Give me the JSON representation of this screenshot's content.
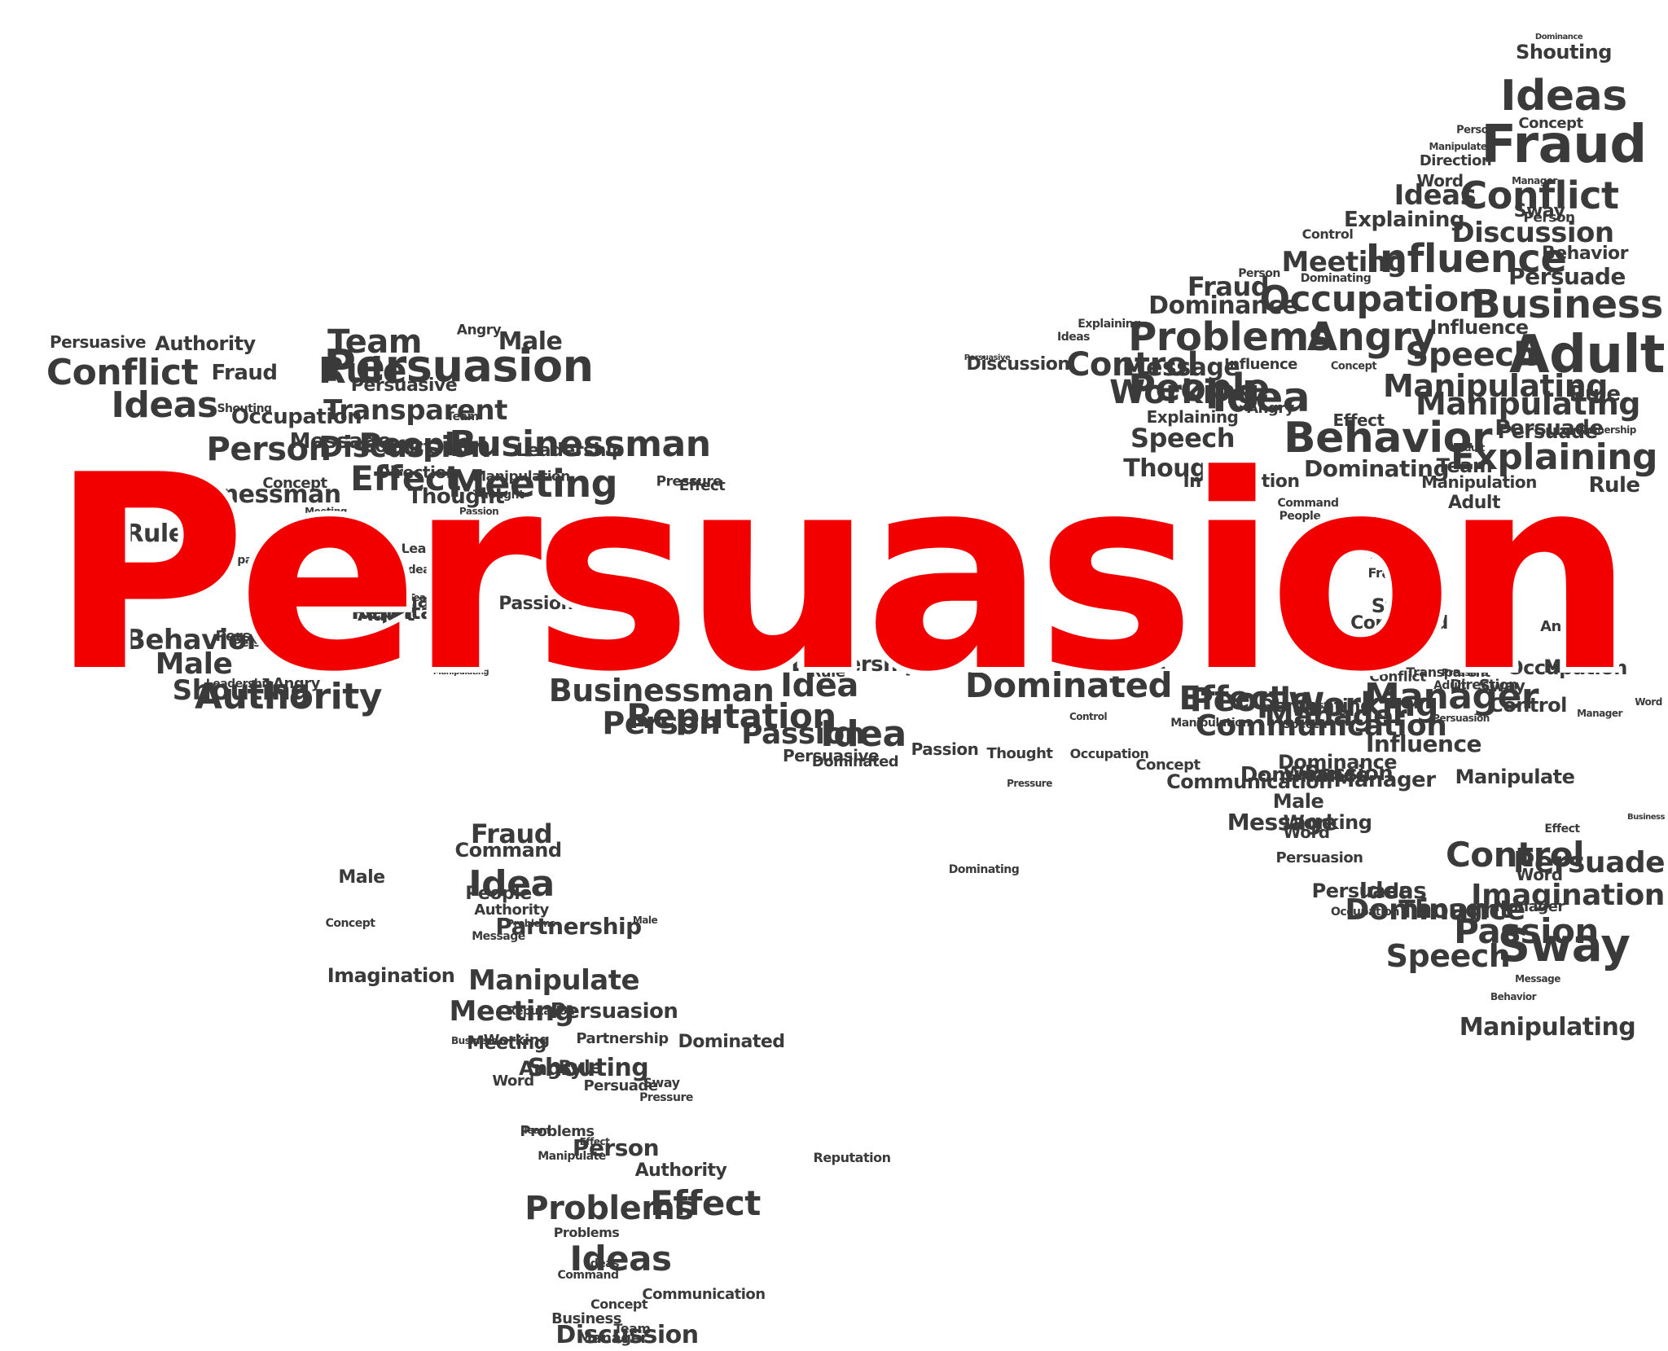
{
  "colors": {
    "headline": "#f20000",
    "words": "#3a3a3a",
    "background": "#ffffff"
  },
  "headline": "Persuasion",
  "cloud_words": [
    "Dominance",
    "Shouting",
    "Ideas",
    "Concept",
    "Fraud",
    "Person",
    "Manipulate",
    "Direction",
    "Word",
    "Manager",
    "Ideas",
    "Conflict",
    "Sway",
    "Explaining",
    "Person",
    "Control",
    "Discussion",
    "Meeting",
    "Influence",
    "Behavior",
    "Dominating",
    "Persuade",
    "Person",
    "Fraud",
    "Occupation",
    "Dominance",
    "Business",
    "Problems",
    "Angry",
    "Influence",
    "Explaining",
    "Ideas",
    "Speech",
    "Adult",
    "Control",
    "Message",
    "Influence",
    "Concept",
    "Manipulating",
    "Rule",
    "Discussion",
    "People",
    "Working",
    "Idea",
    "Angry",
    "Persuade",
    "Effect",
    "Manipulating",
    "Persuasive",
    "Explaining",
    "Speech",
    "Behavior",
    "Adult",
    "Persuade",
    "Partnership",
    "Explaining",
    "Thought",
    "Dominating",
    "Team",
    "Manipulation",
    "Rule",
    "Imagination",
    "Adult",
    "Command",
    "People",
    "Message",
    "Adult",
    "Sway",
    "Fraud",
    "Command",
    "Angry",
    "Male",
    "Occupation",
    "Sway",
    "Pressure",
    "Transparent",
    "Conflict",
    "Male",
    "Adult",
    "Direction",
    "Manager",
    "Word",
    "Dominating",
    "Control",
    "Persuasion",
    "Manager",
    "Speech",
    "Ideas",
    "Dominance",
    "Manipulate",
    "Word",
    "Effect",
    "Persuade",
    "Word",
    "Imagination",
    "Sway",
    "Message",
    "Behavior",
    "Manipulating",
    "Business",
    "Persuasive",
    "Authority",
    "Team",
    "Angry",
    "Male",
    "Conflict",
    "Fraud",
    "Rule",
    "Persuasive",
    "Persuasion",
    "Ideas",
    "Transparent",
    "Occupation",
    "Person",
    "Discussion",
    "People",
    "Team",
    "Shouting",
    "Conflict",
    "Businessman",
    "Leadership",
    "Message",
    "Meeting",
    "Effect",
    "Concept",
    "Direction",
    "Meeting",
    "Businessman",
    "Thought",
    "Manipulation",
    "Pressure",
    "Effect",
    "Thought",
    "Passion",
    "Fraud",
    "Rule",
    "Rule",
    "Transparent",
    "Idea",
    "Leadership",
    "Reputation",
    "Dominated",
    "Passion",
    "Team",
    "Behavior",
    "Adult",
    "Persuasion",
    "Person",
    "Male",
    "Shouting",
    "Businessman",
    "Idea",
    "Dominated",
    "Leadership",
    "Thought",
    "Rule",
    "Angry",
    "Leadership",
    "Manipulating",
    "Authority",
    "Person",
    "Reputation",
    "Passion",
    "Idea",
    "Persuasive",
    "Dominated",
    "Passion",
    "Occupation",
    "Thought",
    "Pressure",
    "Dominating",
    "Control",
    "Effect",
    "Manipulation",
    "Manager",
    "People",
    "Working",
    "Communication",
    "Dominance",
    "Influence",
    "Concept",
    "Passion",
    "Manager",
    "Word",
    "Communication",
    "Male",
    "Message",
    "Working",
    "Control",
    "Persuasion",
    "Manager",
    "Dominance",
    "Speech",
    "Ideas",
    "Persuade",
    "Passion",
    "Occupation",
    "Thought",
    "Fraud",
    "Male",
    "Command",
    "Idea",
    "Authority",
    "Concept",
    "Problems",
    "People",
    "Partnership",
    "Male",
    "Message",
    "Manipulate",
    "Persuasion",
    "Imagination",
    "Meeting",
    "Reputation",
    "Working",
    "Business",
    "Angry",
    "Shouting",
    "Meeting",
    "Partnership",
    "Rule",
    "Word",
    "Sway",
    "Persuade",
    "Pressure",
    "Team",
    "Problems",
    "Person",
    "Effect",
    "Manipulate",
    "Authority",
    "Problems",
    "Effect",
    "Problems",
    "Ideas",
    "Command",
    "Ideas",
    "Concept",
    "Business",
    "Team",
    "Manager",
    "Discussion",
    "Communication",
    "Reputation",
    "Dominated"
  ]
}
